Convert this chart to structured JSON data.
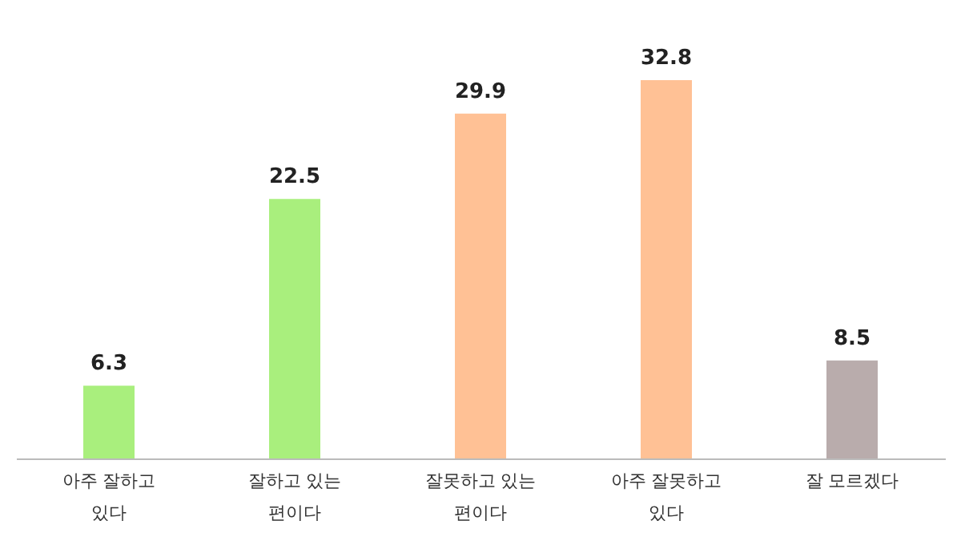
{
  "chart_data": {
    "type": "bar",
    "categories": [
      "아주 잘하고 있다",
      "잘하고 있는 편이다",
      "잘못하고 있는 편이다",
      "아주 잘못하고 있다",
      "잘 모르겠다"
    ],
    "values": [
      6.3,
      22.5,
      29.9,
      32.8,
      8.5
    ],
    "colors": [
      "#a9ef7d",
      "#a9ef7d",
      "#ffc195",
      "#ffc195",
      "#b9acac"
    ],
    "data_labels": true,
    "tick_labels": "x"
  }
}
